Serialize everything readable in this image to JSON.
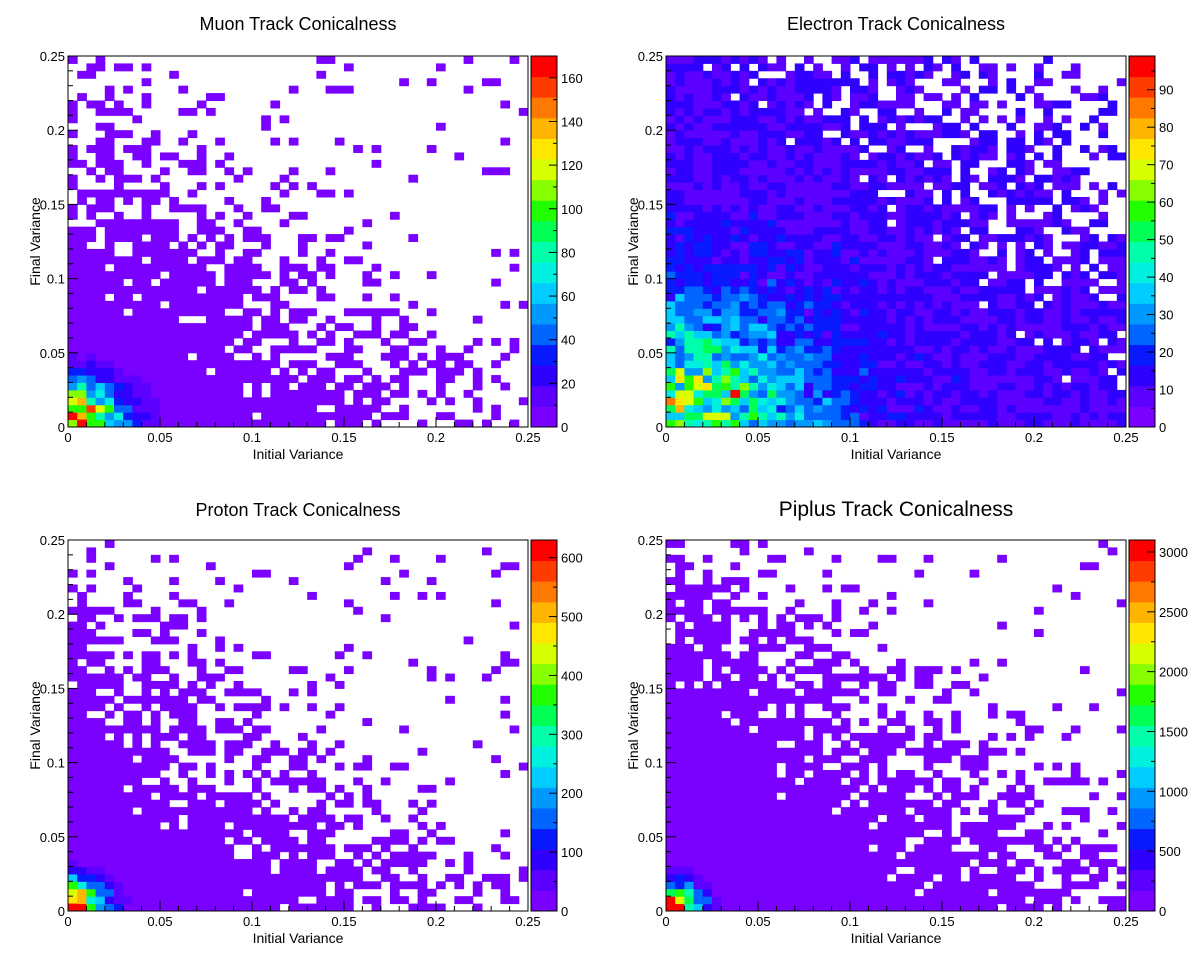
{
  "chart_data": [
    {
      "type": "heatmap",
      "title": "Muon Track Conicalness",
      "xlabel": "Initial Variance",
      "ylabel": "Final Variance",
      "xlim": [
        0,
        0.25
      ],
      "ylim": [
        0,
        0.25
      ],
      "bins": 50,
      "xticks": [
        "0",
        "0.05",
        "0.1",
        "0.15",
        "0.2",
        "0.25"
      ],
      "yticks": [
        "0",
        "0.05",
        "0.1",
        "0.15",
        "0.2",
        "0.25"
      ],
      "zlim": [
        0,
        170
      ],
      "zticks": [
        "0",
        "20",
        "40",
        "60",
        "80",
        "100",
        "120",
        "140",
        "160"
      ],
      "zstep": 20,
      "peak_cell": {
        "x": 0.0075,
        "y": 0.0025,
        "value": 170
      },
      "pattern": {
        "base": 4,
        "peak": 170,
        "decay": 0.012,
        "fill_start": 0.42,
        "fill_slope": 0.03
      }
    },
    {
      "type": "heatmap",
      "title": "Electron Track Conicalness",
      "xlabel": "Initial Variance",
      "ylabel": "Final Variance",
      "xlim": [
        0,
        0.25
      ],
      "ylim": [
        0,
        0.25
      ],
      "bins": 50,
      "xticks": [
        "0",
        "0.05",
        "0.1",
        "0.15",
        "0.2",
        "0.25"
      ],
      "yticks": [
        "0",
        "0.05",
        "0.1",
        "0.15",
        "0.2",
        "0.25"
      ],
      "zlim": [
        0,
        99
      ],
      "zticks": [
        "0",
        "10",
        "20",
        "30",
        "40",
        "50",
        "60",
        "70",
        "80",
        "90"
      ],
      "zstep": 10,
      "peak_cell": {
        "x": 0.0375,
        "y": 0.0225,
        "value": 99
      },
      "pattern": {
        "base": 6,
        "peak": 60,
        "decay": 0.09,
        "fill_start": 0.97,
        "fill_slope": 0.0
      }
    },
    {
      "type": "heatmap",
      "title": "Proton Track Conicalness",
      "xlabel": "Initial Variance",
      "ylabel": "Final Variance",
      "xlim": [
        0,
        0.25
      ],
      "ylim": [
        0,
        0.25
      ],
      "bins": 50,
      "xticks": [
        "0",
        "0.05",
        "0.1",
        "0.15",
        "0.2",
        "0.25"
      ],
      "yticks": [
        "0",
        "0.05",
        "0.1",
        "0.15",
        "0.2",
        "0.25"
      ],
      "zlim": [
        0,
        630
      ],
      "zticks": [
        "0",
        "100",
        "200",
        "300",
        "400",
        "500",
        "600"
      ],
      "zstep": 100,
      "peak_cell": {
        "x": 0.0025,
        "y": 0.0025,
        "value": 630
      },
      "pattern": {
        "base": 4,
        "peak": 630,
        "decay": 0.006,
        "fill_start": 0.4,
        "fill_slope": 0.03
      }
    },
    {
      "type": "heatmap",
      "title": "Piplus Track Conicalness",
      "xlabel": "Initial Variance",
      "ylabel": "Final Variance",
      "xlim": [
        0,
        0.25
      ],
      "ylim": [
        0,
        0.25
      ],
      "bins": 50,
      "xticks": [
        "0",
        "0.05",
        "0.1",
        "0.15",
        "0.2",
        "0.25"
      ],
      "yticks": [
        "0",
        "0.05",
        "0.1",
        "0.15",
        "0.2",
        "0.25"
      ],
      "zlim": [
        0,
        3100
      ],
      "zticks": [
        "0",
        "500",
        "1000",
        "1500",
        "2000",
        "2500",
        "3000"
      ],
      "zstep": 500,
      "peak_cell": {
        "x": 0.0025,
        "y": 0.0025,
        "value": 3100
      },
      "pattern": {
        "base": 20,
        "peak": 3100,
        "decay": 0.005,
        "fill_start": 0.55,
        "fill_slope": 0.025
      }
    }
  ]
}
